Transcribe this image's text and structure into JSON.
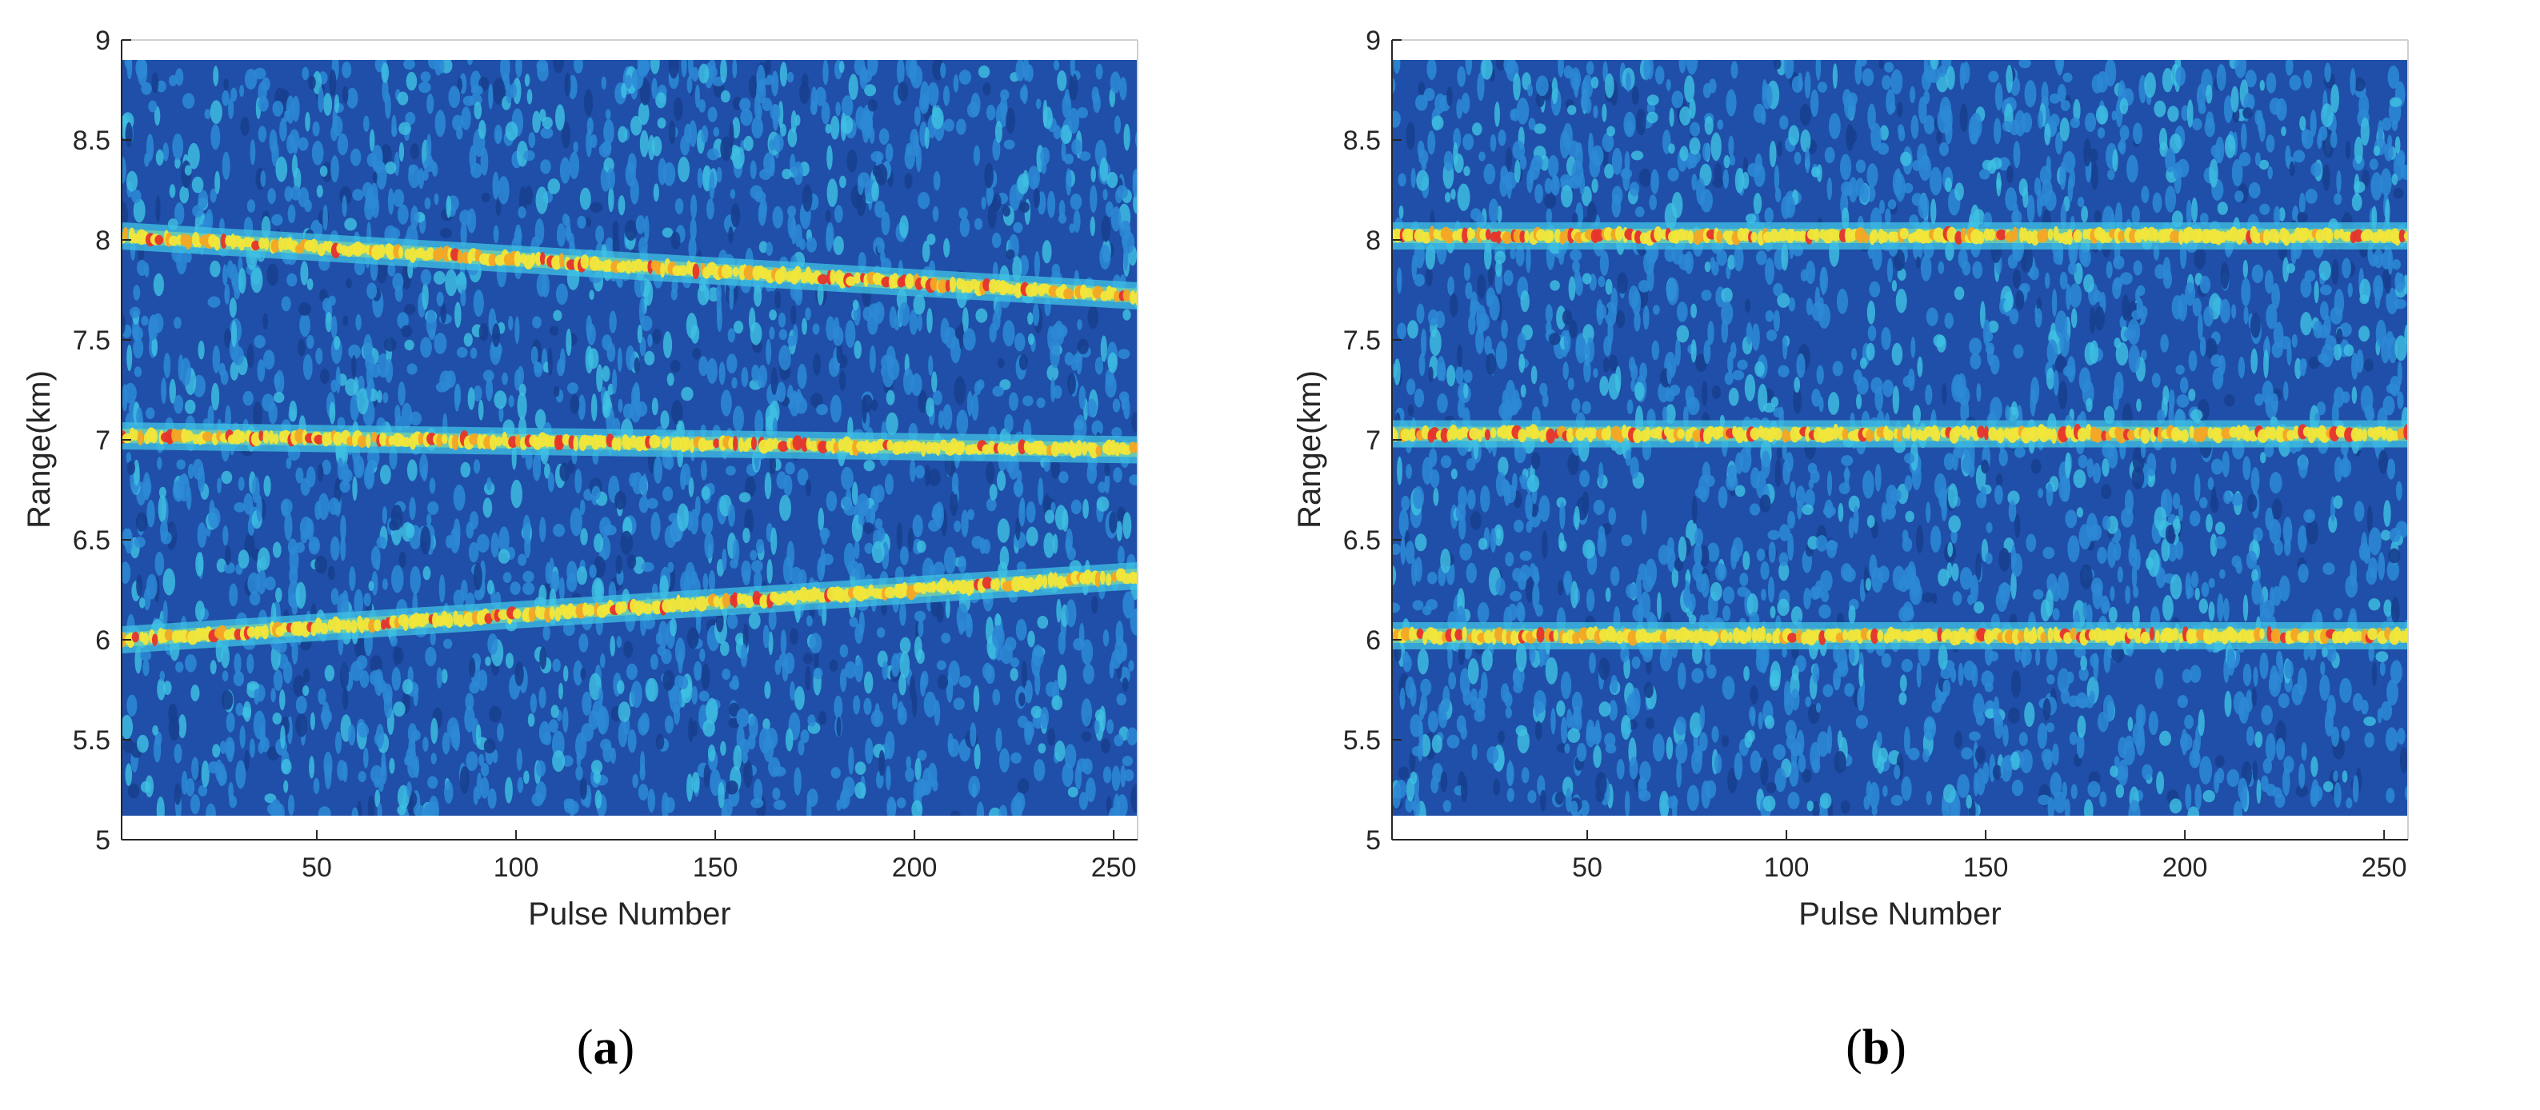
{
  "chart_data": [
    {
      "type": "heatmap",
      "panel_label": "a",
      "xlabel": "Pulse Number",
      "ylabel": "Range(km)",
      "xlim": [
        1,
        256
      ],
      "ylim": [
        5,
        9
      ],
      "data_range": [
        5.12,
        8.9
      ],
      "xticks": [
        50,
        100,
        150,
        200,
        250
      ],
      "yticks": [
        5,
        5.5,
        6,
        6.5,
        7,
        7.5,
        8,
        8.5,
        9
      ],
      "grid": false,
      "colormap": "parula",
      "colors": {
        "background": "#1f4fa8",
        "noise": "#2d8ad6",
        "noise_bright": "#3fc2e4",
        "track": "#f2e63a",
        "peak": "#e8332a"
      },
      "tracks": [
        {
          "x": [
            1,
            256
          ],
          "y": [
            8.02,
            7.72
          ]
        },
        {
          "x": [
            1,
            256
          ],
          "y": [
            7.02,
            6.95
          ]
        },
        {
          "x": [
            1,
            256
          ],
          "y": [
            6.0,
            6.32
          ]
        }
      ]
    },
    {
      "type": "heatmap",
      "panel_label": "b",
      "xlabel": "Pulse Number",
      "ylabel": "Range(km)",
      "xlim": [
        1,
        256
      ],
      "ylim": [
        5,
        9
      ],
      "data_range": [
        5.12,
        8.9
      ],
      "xticks": [
        50,
        100,
        150,
        200,
        250
      ],
      "yticks": [
        5,
        5.5,
        6,
        6.5,
        7,
        7.5,
        8,
        8.5,
        9
      ],
      "grid": false,
      "colormap": "parula",
      "colors": {
        "background": "#1f4fa8",
        "noise": "#2d8ad6",
        "noise_bright": "#3fc2e4",
        "track": "#f2e63a",
        "peak": "#e8332a"
      },
      "tracks": [
        {
          "x": [
            1,
            256
          ],
          "y": [
            8.02,
            8.02
          ]
        },
        {
          "x": [
            1,
            256
          ],
          "y": [
            7.03,
            7.03
          ]
        },
        {
          "x": [
            1,
            256
          ],
          "y": [
            6.02,
            6.02
          ]
        }
      ]
    }
  ]
}
